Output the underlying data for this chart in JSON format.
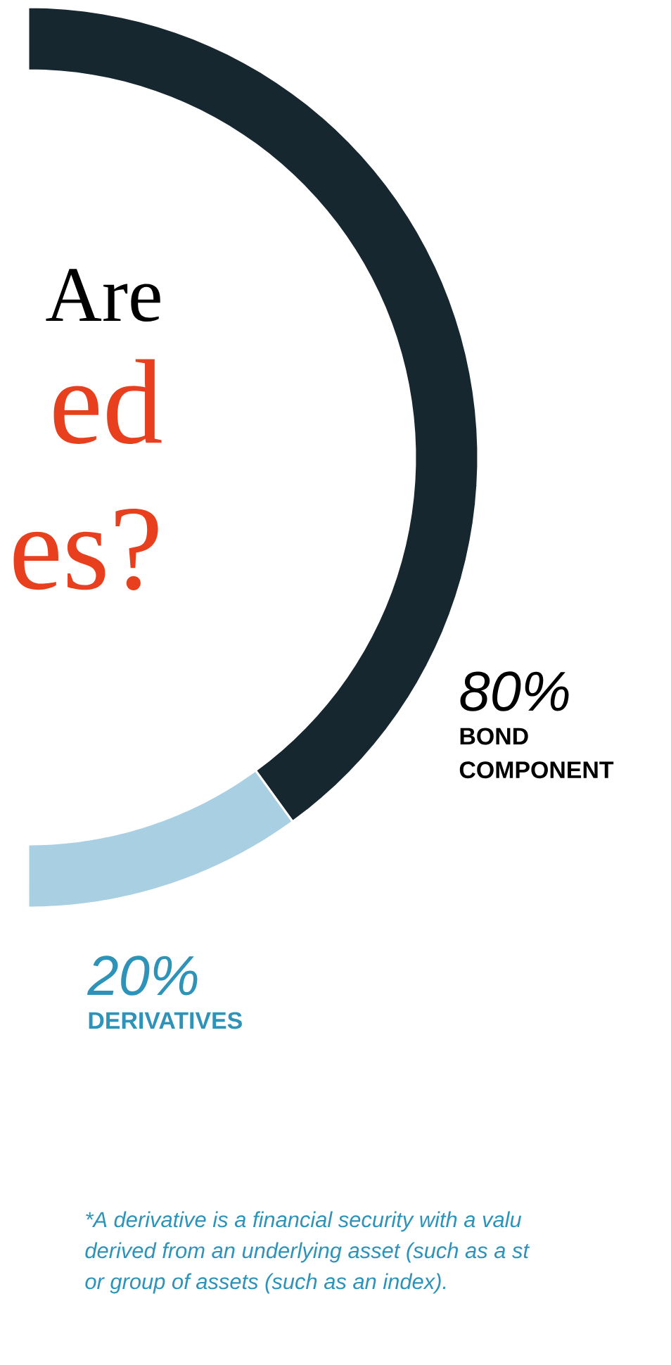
{
  "chart_data": {
    "type": "donut",
    "title": "Are",
    "subtitle": "ed es?",
    "categories": [
      "BOND COMPONENT",
      "DERIVATIVES"
    ],
    "values": [
      80,
      20
    ],
    "colors": [
      "#17272f",
      "#a9cfe2"
    ],
    "value_labels": [
      "80%",
      "20%"
    ],
    "annotations": [
      "*A derivative is a financial security with a valu",
      "derived from an underlying asset (such as a st",
      "or group of assets (such as an index)."
    ]
  }
}
